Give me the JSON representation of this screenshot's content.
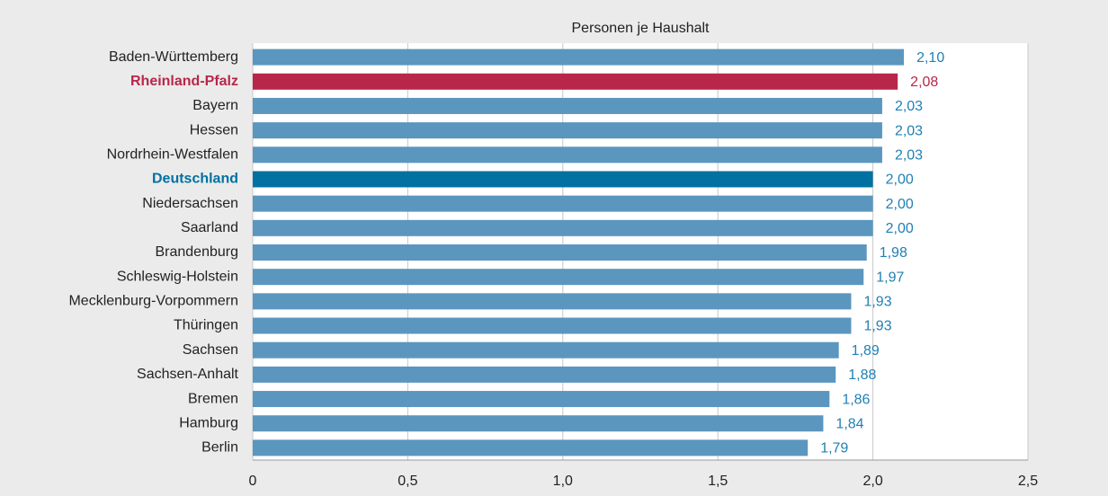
{
  "chart_data": {
    "type": "barh",
    "title": "Personen je Haushalt",
    "categories": [
      "Baden-Württemberg",
      "Rheinland-Pfalz",
      "Bayern",
      "Hessen",
      "Nordrhein-Westfalen",
      "Deutschland",
      "Niedersachsen",
      "Saarland",
      "Brandenburg",
      "Schleswig-Holstein",
      "Mecklenburg-Vorpommern",
      "Thüringen",
      "Sachsen",
      "Sachsen-Anhalt",
      "Bremen",
      "Hamburg",
      "Berlin"
    ],
    "values": [
      2.1,
      2.08,
      2.03,
      2.03,
      2.03,
      2.0,
      2.0,
      2.0,
      1.98,
      1.97,
      1.93,
      1.93,
      1.89,
      1.88,
      1.86,
      1.84,
      1.79
    ],
    "value_labels": [
      "2,10",
      "2,08",
      "2,03",
      "2,03",
      "2,03",
      "2,00",
      "2,00",
      "2,00",
      "1,98",
      "1,97",
      "1,93",
      "1,93",
      "1,89",
      "1,88",
      "1,86",
      "1,84",
      "1,79"
    ],
    "color": "#5b96bf",
    "bar_colors": [
      "#5b96bf",
      "#b8264a",
      "#5b96bf",
      "#5b96bf",
      "#5b96bf",
      "#0071a1",
      "#5b96bf",
      "#5b96bf",
      "#5b96bf",
      "#5b96bf",
      "#5b96bf",
      "#5b96bf",
      "#5b96bf",
      "#5b96bf",
      "#5b96bf",
      "#5b96bf",
      "#5b96bf"
    ],
    "label_color": "#2080b4",
    "xlim": [
      0,
      2.5
    ],
    "xticks": [
      0,
      {
        "value": 0.5,
        "label": "0,5"
      },
      {
        "value": 1.0,
        "label": "1,0"
      },
      {
        "value": 1.5,
        "label": "1,5"
      },
      {
        "value": 2.0,
        "label": "2,0"
      },
      {
        "value": 2.5,
        "label": "2,5"
      }
    ],
    "grid": true
  }
}
